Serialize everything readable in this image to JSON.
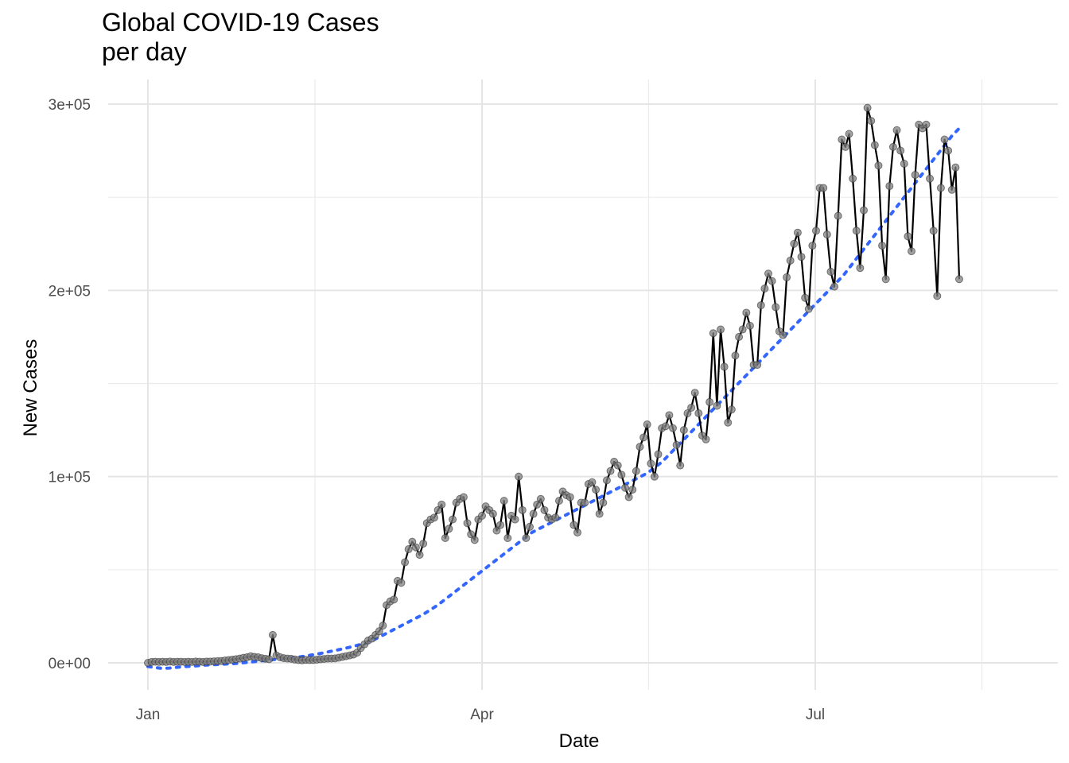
{
  "chart_data": {
    "type": "line",
    "title_line1": "Global COVID-19 Cases",
    "title_line2": "per day",
    "xlabel": "Date",
    "ylabel": "New Cases",
    "x_ticks": [
      "Jan",
      "Apr",
      "Jul"
    ],
    "y_ticks": [
      "0e+00",
      "1e+05",
      "2e+05",
      "3e+05"
    ],
    "ylim": [
      -15000,
      315000
    ],
    "x_start": "2020-01-01",
    "grid": true,
    "series": [
      {
        "type": "line-with-points",
        "color": "#000000",
        "point_color": "#808080",
        "values": [
          0,
          500,
          600,
          500,
          600,
          500,
          700,
          500,
          600,
          600,
          500,
          600,
          500,
          700,
          600,
          500,
          700,
          700,
          800,
          900,
          1000,
          1300,
          1500,
          1700,
          2000,
          2300,
          2700,
          3000,
          3500,
          3200,
          3000,
          2500,
          2200,
          2000,
          15000,
          4000,
          3000,
          2500,
          2300,
          2200,
          1800,
          1500,
          1400,
          1600,
          1500,
          1500,
          1700,
          1900,
          2100,
          2300,
          2300,
          2400,
          2800,
          3200,
          3600,
          4000,
          4500,
          5500,
          8000,
          10000,
          12000,
          13000,
          15000,
          17000,
          20000,
          31000,
          33000,
          34000,
          44000,
          43000,
          54000,
          61000,
          65000,
          62000,
          58000,
          64000,
          75000,
          77000,
          78000,
          82000,
          85000,
          67000,
          72000,
          77000,
          86000,
          88000,
          89000,
          75000,
          69000,
          66000,
          77000,
          79000,
          84000,
          82000,
          80000,
          71000,
          74000,
          87000,
          67000,
          79000,
          77000,
          100000,
          82000,
          67000,
          73000,
          80000,
          85000,
          88000,
          82000,
          78000,
          77000,
          78000,
          87000,
          92000,
          90000,
          89000,
          74000,
          70000,
          86000,
          86000,
          96000,
          97000,
          93000,
          80000,
          86000,
          98000,
          103000,
          108000,
          106000,
          101000,
          94000,
          89000,
          93000,
          103000,
          116000,
          121000,
          128000,
          107000,
          100000,
          112000,
          126000,
          127000,
          133000,
          126000,
          117000,
          106000,
          125000,
          134000,
          137000,
          145000,
          134000,
          122000,
          120000,
          140000,
          177000,
          138000,
          179000,
          159000,
          129000,
          136000,
          165000,
          175000,
          179000,
          188000,
          181000,
          160000,
          160000,
          192000,
          201000,
          209000,
          205000,
          191000,
          178000,
          176000,
          207000,
          216000,
          225000,
          231000,
          218000,
          196000,
          190000,
          224000,
          232000,
          255000,
          255000,
          230000,
          210000,
          202000,
          240000,
          281000,
          277000,
          284000,
          260000,
          232000,
          212000,
          243000,
          298000,
          291000,
          278000,
          267000,
          224000,
          206000,
          256000,
          277000,
          286000,
          275000,
          268000,
          229000,
          221000,
          262000,
          289000,
          287000,
          289000,
          260000,
          232000,
          197000,
          255000,
          281000,
          275000,
          254000,
          266000,
          206000
        ]
      },
      {
        "type": "trend",
        "style": "dotted",
        "color": "#3366ff",
        "values": [
          -2000,
          -2500,
          -3000,
          -2800,
          -2400,
          -2000,
          -1800,
          -1500,
          -1200,
          -1000,
          -800,
          -600,
          -400,
          0,
          400,
          800,
          1200,
          1600,
          2000,
          2400,
          2800,
          3200,
          3800,
          4500,
          5200,
          6000,
          6800,
          7600,
          8500,
          9500,
          10500,
          12000,
          14000,
          16000,
          18000,
          20000,
          22000,
          24000,
          26000,
          28500,
          31000,
          34000,
          37000,
          40000,
          43000,
          46000,
          49000,
          52000,
          55000,
          58000,
          61000,
          64000,
          67000,
          70000,
          72000,
          74000,
          76000,
          78000,
          80000,
          82000,
          84000,
          86000,
          88000,
          90000,
          92000,
          94000,
          96000,
          98000,
          100000,
          102000,
          105000,
          108000,
          112000,
          116000,
          120000,
          124000,
          128000,
          132000,
          136000,
          140000,
          144000,
          148000,
          152000,
          156000,
          160000,
          164000,
          168000,
          172000,
          176000,
          180000,
          184000,
          188000,
          192000,
          196000,
          200000,
          204000,
          208000,
          213000,
          218000,
          223000,
          228000,
          233000,
          238000,
          243000,
          248000,
          253000,
          258000,
          263000,
          268000,
          273000,
          278000,
          283000,
          287000
        ]
      }
    ]
  }
}
